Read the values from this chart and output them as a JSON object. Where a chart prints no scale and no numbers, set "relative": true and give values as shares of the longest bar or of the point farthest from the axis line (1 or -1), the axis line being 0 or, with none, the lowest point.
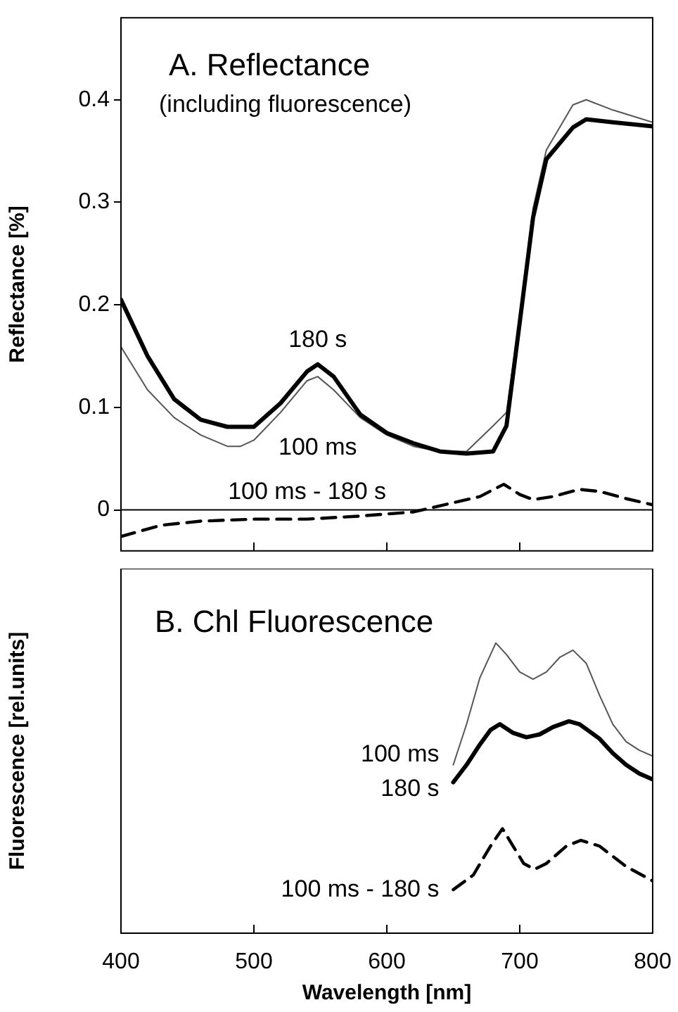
{
  "chart_data": [
    {
      "type": "line",
      "title": "A. Reflectance",
      "subtitle": "(including fluorescence)",
      "ylabel": "Reflectance [%]",
      "xlim": [
        400,
        800
      ],
      "xticks": [
        400,
        500,
        600,
        700,
        800
      ],
      "ylim": [
        -0.04,
        0.48
      ],
      "yticks": [
        0,
        0.1,
        0.2,
        0.3,
        0.4
      ],
      "tick_labels": "y",
      "ref_lines": [
        {
          "axis": "y",
          "value": 0,
          "color": "#000000"
        }
      ],
      "series": [
        {
          "name": "180 s",
          "color": "#000000",
          "x": [
            400,
            420,
            440,
            460,
            480,
            500,
            520,
            540,
            548,
            560,
            580,
            600,
            620,
            640,
            660,
            680,
            690,
            700,
            710,
            720,
            740,
            750,
            770,
            800
          ],
          "values": [
            0.205,
            0.15,
            0.108,
            0.088,
            0.081,
            0.081,
            0.104,
            0.135,
            0.142,
            0.13,
            0.093,
            0.075,
            0.065,
            0.057,
            0.055,
            0.057,
            0.082,
            0.183,
            0.285,
            0.342,
            0.373,
            0.381,
            0.378,
            0.374
          ]
        },
        {
          "name": "100 ms",
          "color": "#555555",
          "x": [
            400,
            420,
            440,
            460,
            480,
            490,
            500,
            520,
            540,
            548,
            560,
            580,
            600,
            620,
            640,
            660,
            680,
            690,
            700,
            710,
            720,
            740,
            750,
            770,
            800
          ],
          "values": [
            0.159,
            0.117,
            0.09,
            0.073,
            0.062,
            0.062,
            0.068,
            0.095,
            0.126,
            0.13,
            0.117,
            0.09,
            0.073,
            0.062,
            0.057,
            0.057,
            0.082,
            0.095,
            0.188,
            0.294,
            0.351,
            0.395,
            0.4,
            0.39,
            0.378
          ]
        },
        {
          "name": "100 ms - 180 s",
          "color": "#000000",
          "line_style": "dashed",
          "x": [
            400,
            430,
            460,
            500,
            540,
            580,
            620,
            650,
            670,
            688,
            700,
            710,
            725,
            745,
            760,
            780,
            800
          ],
          "values": [
            -0.026,
            -0.015,
            -0.011,
            -0.009,
            -0.009,
            -0.006,
            -0.002,
            0.007,
            0.013,
            0.025,
            0.015,
            0.01,
            0.013,
            0.02,
            0.018,
            0.011,
            0.005
          ]
        }
      ]
    },
    {
      "type": "line",
      "title": "B. Chl Fluorescence",
      "ylabel": "Fluorescence [rel.units]",
      "xlabel": "Wavelength [nm]",
      "xlim": [
        400,
        800
      ],
      "xticks": [
        400,
        500,
        600,
        700,
        800
      ],
      "relative": true,
      "tick_labels": "x",
      "series": [
        {
          "name": "180 s",
          "color": "#000000",
          "x": [
            650,
            660,
            670,
            678,
            685,
            695,
            705,
            715,
            725,
            737,
            745,
            760,
            770,
            780,
            790,
            800
          ],
          "values": [
            0.52,
            0.58,
            0.65,
            0.7,
            0.72,
            0.69,
            0.675,
            0.685,
            0.71,
            0.73,
            0.72,
            0.67,
            0.62,
            0.58,
            0.55,
            0.53
          ]
        },
        {
          "name": "100 ms",
          "color": "#555555",
          "x": [
            650,
            660,
            670,
            682,
            690,
            700,
            710,
            720,
            730,
            740,
            750,
            760,
            770,
            780,
            790,
            800
          ],
          "values": [
            0.58,
            0.72,
            0.88,
            1.0,
            0.96,
            0.9,
            0.875,
            0.9,
            0.95,
            0.975,
            0.93,
            0.82,
            0.72,
            0.66,
            0.63,
            0.61
          ]
        },
        {
          "name": "100 ms - 180 s",
          "color": "#000000",
          "line_style": "dashed",
          "x": [
            650,
            665,
            678,
            687,
            695,
            703,
            711,
            720,
            735,
            746,
            760,
            780,
            800
          ],
          "values": [
            0.15,
            0.2,
            0.3,
            0.36,
            0.3,
            0.24,
            0.22,
            0.24,
            0.3,
            0.32,
            0.3,
            0.23,
            0.18
          ]
        }
      ]
    }
  ]
}
